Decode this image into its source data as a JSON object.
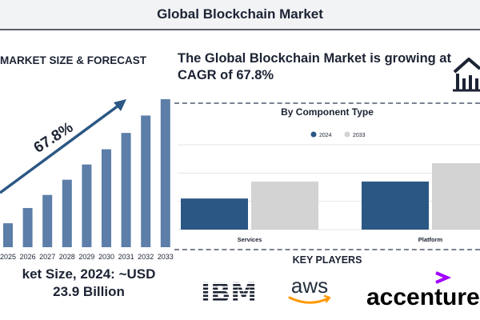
{
  "header": {
    "title": "Global Blockchain Market"
  },
  "left_panel": {
    "heading": "MARKET SIZE & FORECAST",
    "cagr_label": "67.8%",
    "market_size_line1": "ket Size, 2024: ~USD",
    "market_size_line2": "23.9 Billion"
  },
  "right_panel": {
    "headline": "The Global Blockchain Market is growing at CAGR of 67.8%",
    "chart_title": "By Component Type",
    "key_players_title": "KEY PLAYERS",
    "logos": {
      "ibm": "IBM",
      "aws": "aws",
      "accenture": "accenture"
    }
  },
  "colors": {
    "navy": "#2b5784",
    "bar_blue": "#5c7ea8",
    "light_gray": "#d3d3d3",
    "text_dark": "#1c2333",
    "accenture_purple": "#a100ff",
    "aws_orange": "#ff9900"
  },
  "icons": [
    "house-chart-icon",
    "trend-arrow-icon"
  ],
  "chart_data": [
    {
      "type": "bar",
      "categories": [
        "2025",
        "2026",
        "2027",
        "2028",
        "2029",
        "2030",
        "2031",
        "2032",
        "2033"
      ],
      "series": [
        {
          "values": [
            2.2,
            3.6,
            4.8,
            6.2,
            7.6,
            9.0,
            10.5,
            12.1,
            13.6
          ]
        }
      ],
      "annotations": [
        "67.8%"
      ],
      "title": "MARKET SIZE & FORECAST",
      "grid": false,
      "legend": "none"
    },
    {
      "type": "bar",
      "categories": [
        "Services",
        "Platform"
      ],
      "series": [
        {
          "name": "2024",
          "values": [
            2.2,
            3.4
          ]
        },
        {
          "name": "2033",
          "values": [
            3.4,
            4.7
          ]
        }
      ],
      "title": "By Component Type",
      "ylim": [
        0,
        6
      ],
      "grid": true,
      "legend": "top-center"
    }
  ]
}
